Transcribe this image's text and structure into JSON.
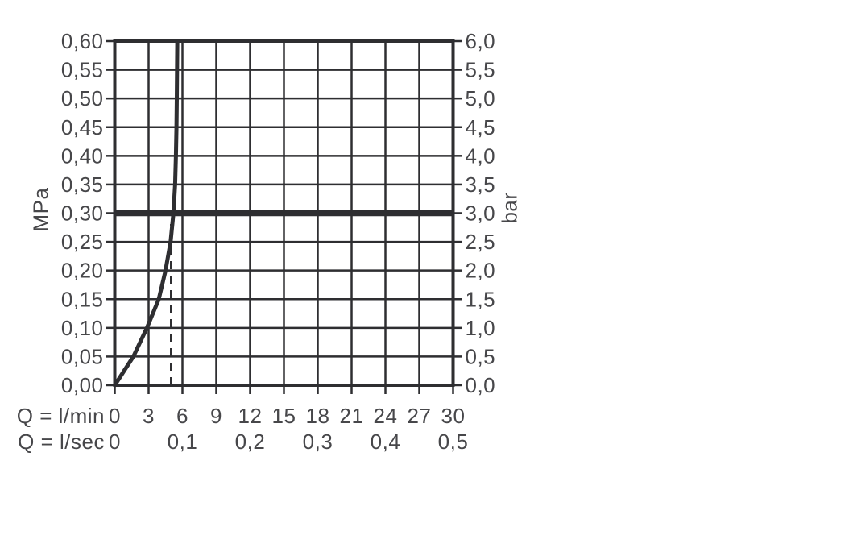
{
  "page": {
    "background": "#ffffff"
  },
  "chart_data": {
    "type": "line",
    "title": "",
    "grid": true,
    "legend": false,
    "colors": {
      "line": "#2e2e31",
      "text": "#47474a",
      "background": "#ffffff"
    },
    "y_axis_left": {
      "label": "MPa",
      "min": 0,
      "max": 0.6,
      "step": 0.05,
      "tick_labels": [
        "0,60",
        "0,55",
        "0,50",
        "0,45",
        "0,40",
        "0,35",
        "0,30",
        "0,25",
        "0,20",
        "0,15",
        "0,10",
        "0,05",
        "0,00"
      ]
    },
    "y_axis_right": {
      "label": "bar",
      "min": 0,
      "max": 6,
      "step": 0.5,
      "tick_labels": [
        "6,0",
        "5,5",
        "5,0",
        "4,5",
        "4,0",
        "3,5",
        "3,0",
        "2,5",
        "2,0",
        "1,5",
        "1,0",
        "0,5",
        "0,0"
      ]
    },
    "x_axis_primary": {
      "label": "Q = l/min",
      "min": 0,
      "max": 30,
      "step": 3,
      "tick_values": [
        0,
        3,
        6,
        9,
        12,
        15,
        18,
        21,
        24,
        27,
        30
      ],
      "tick_labels": [
        "0",
        "3",
        "6",
        "9",
        "12",
        "15",
        "18",
        "21",
        "24",
        "27",
        "30"
      ]
    },
    "x_axis_secondary": {
      "label": "Q = l/sec",
      "tick_values_lmin": [
        0,
        6,
        12,
        18,
        24,
        30
      ],
      "tick_labels": [
        "0",
        "0,1",
        "0,2",
        "0,3",
        "0,4",
        "0,5"
      ]
    },
    "series": [
      {
        "name": "flow-rate-curve",
        "points_q_lmin_p_mpa": [
          [
            0,
            0
          ],
          [
            1.65,
            0.05
          ],
          [
            2.85,
            0.1
          ],
          [
            3.9,
            0.15
          ],
          [
            4.5,
            0.2
          ],
          [
            4.95,
            0.25
          ],
          [
            5.2,
            0.3
          ],
          [
            5.35,
            0.35
          ],
          [
            5.42,
            0.4
          ],
          [
            5.47,
            0.45
          ],
          [
            5.5,
            0.5
          ],
          [
            5.52,
            0.55
          ],
          [
            5.54,
            0.6
          ]
        ]
      }
    ],
    "annotations": {
      "recommended_pressure_line_mpa": 0.3,
      "recommended_pressure_line_bar": 3.0,
      "dashed_flow_line_q_lmin": 5.0,
      "dashed_flow_line_top_mpa": 0.281
    }
  }
}
